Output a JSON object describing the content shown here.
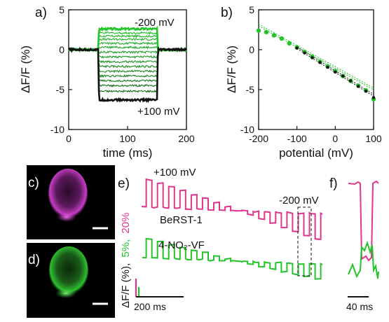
{
  "colors": {
    "green": "#22c42a",
    "magenta": "#e0358c",
    "black": "#111111",
    "cell_magenta": "#c63cc4",
    "cell_green": "#2fbf2f",
    "dark_green": "#14661a"
  },
  "chart_data": [
    {
      "panel": "a)",
      "type": "line",
      "xlabel": "time (ms)",
      "ylabel": "ΔF/F (%)",
      "xlim": [
        0,
        200
      ],
      "ylim": [
        -10,
        5
      ],
      "xticks": [
        "0",
        "100",
        "200"
      ],
      "yticks": [
        "5",
        "0",
        "-5",
        "-10"
      ],
      "pulse_window_ms": [
        50,
        150
      ],
      "annotations": [
        "-200 mV",
        "+100 mV"
      ],
      "series": [
        {
          "potential_mV": -200,
          "plateau": 2.6
        },
        {
          "potential_mV": -180,
          "plateau": 2.1
        },
        {
          "potential_mV": -160,
          "plateau": 1.7
        },
        {
          "potential_mV": -140,
          "plateau": 1.3
        },
        {
          "potential_mV": -120,
          "plateau": 0.8
        },
        {
          "potential_mV": -100,
          "plateau": 0.3
        },
        {
          "potential_mV": -80,
          "plateau": -0.3
        },
        {
          "potential_mV": -60,
          "plateau": -0.9
        },
        {
          "potential_mV": -40,
          "plateau": -1.5
        },
        {
          "potential_mV": -20,
          "plateau": -2.1
        },
        {
          "potential_mV": 0,
          "plateau": -2.7
        },
        {
          "potential_mV": 20,
          "plateau": -3.3
        },
        {
          "potential_mV": 40,
          "plateau": -3.9
        },
        {
          "potential_mV": 60,
          "plateau": -4.5
        },
        {
          "potential_mV": 80,
          "plateau": -5.2
        },
        {
          "potential_mV": 100,
          "plateau": -6.3
        }
      ]
    },
    {
      "panel": "b)",
      "type": "scatter",
      "xlabel": "potential (mV)",
      "ylabel": "ΔF/F (%)",
      "xlim": [
        -200,
        100
      ],
      "ylim": [
        -10,
        5
      ],
      "xticks": [
        "-200",
        "-100",
        "0",
        "100"
      ],
      "yticks": [
        "5",
        "0",
        "-5",
        "-10"
      ],
      "series": [
        {
          "color": "green",
          "x": [
            -200,
            -180,
            -160,
            -140,
            -120,
            -100,
            -80,
            -60,
            -40,
            -20,
            0,
            20,
            40,
            60,
            80,
            100
          ],
          "y": [
            2.4,
            2.2,
            1.8,
            1.4,
            0.8,
            0.3,
            -0.3,
            -0.9,
            -1.5,
            -2.1,
            -2.7,
            -3.3,
            -3.9,
            -4.5,
            -5.1,
            -6.2
          ]
        },
        {
          "color": "black",
          "x": [
            -100,
            -80,
            -60,
            -40,
            -20,
            0,
            20,
            40,
            60,
            80,
            100
          ],
          "y": [
            0.2,
            -0.4,
            -1.0,
            -1.6,
            -2.2,
            -2.8,
            -3.3,
            -3.9,
            -4.6,
            -5.2,
            -6.0
          ]
        }
      ],
      "fit_lines": [
        {
          "color": "green",
          "x": [
            -200,
            100
          ],
          "y": [
            3.2,
            -4.8
          ]
        },
        {
          "color": "black",
          "x": [
            -100,
            100
          ],
          "y": [
            0.35,
            -5.6
          ]
        }
      ]
    },
    {
      "panel": "e)",
      "type": "line",
      "annotations": [
        "+100 mV",
        "-200 mV"
      ],
      "series": [
        {
          "name": "BeRST-1",
          "color": "magenta",
          "scale_label": "20%",
          "levels": [
            6.0,
            5.4,
            4.7,
            4.0,
            3.2,
            2.4,
            1.6,
            0.8,
            0.0,
            -0.8,
            -1.6,
            -2.4,
            -3.2,
            -4.0,
            -4.8,
            -5.6
          ]
        },
        {
          "name": "4-NO₂-VF",
          "color": "green",
          "scale_label": "5%",
          "levels": [
            -5.0,
            -4.4,
            -3.8,
            -3.1,
            -2.5,
            -1.9,
            -1.2,
            -0.6,
            0.0,
            0.6,
            1.2,
            1.8,
            2.4,
            3.0,
            3.6,
            4.2
          ]
        }
      ],
      "ylabel_prefix": "ΔF/F (%),",
      "ylabel_green": "5%,",
      "ylabel_magenta": "20%",
      "time_scale_label": "200 ms"
    },
    {
      "panel": "f)",
      "type": "line",
      "time_scale_label": "40 ms"
    }
  ],
  "panels": {
    "c_label": "c)",
    "d_label": "d)"
  }
}
